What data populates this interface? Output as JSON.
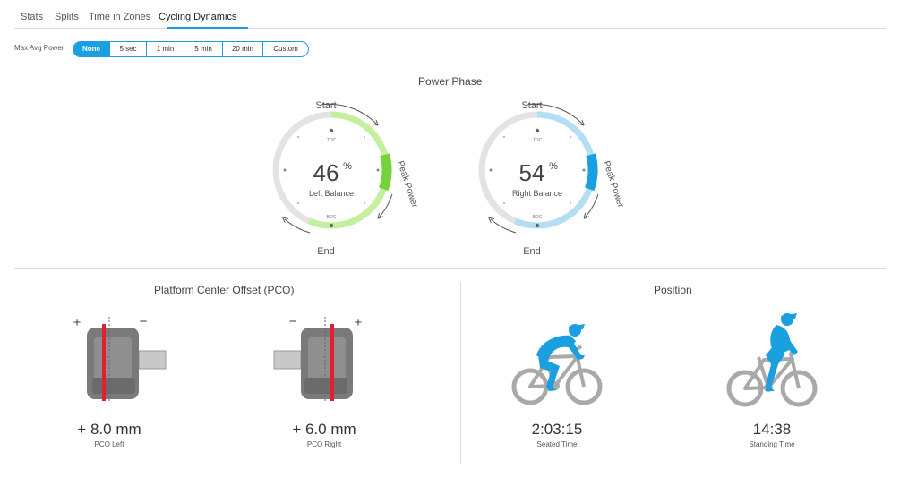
{
  "tabs": [
    "Stats",
    "Splits",
    "Time in Zones",
    "Cycling Dynamics"
  ],
  "active_tab": "Cycling Dynamics",
  "max_avg_power": {
    "label": "Max Avg Power",
    "options": [
      "None",
      "5 sec",
      "1 min",
      "5 min",
      "20 min",
      "Custom"
    ],
    "selected": "None"
  },
  "power_phase": {
    "title": "Power Phase",
    "left": {
      "value": "46",
      "unit": "%",
      "label": "Left Balance",
      "color": "#72d43a",
      "light_color": "#c3ef9e",
      "start_label": "Start",
      "end_label": "End",
      "peak_label": "Peak Power",
      "tdc_label": "TDC",
      "bdc_label": "BDC"
    },
    "right": {
      "value": "54",
      "unit": "%",
      "label": "Right Balance",
      "color": "#1aa0e0",
      "light_color": "#b3def4",
      "start_label": "Start",
      "end_label": "End",
      "peak_label": "Peak Power",
      "tdc_label": "TDC",
      "bdc_label": "BDC"
    }
  },
  "pco": {
    "title": "Platform Center Offset (PCO)",
    "left": {
      "value": "+ 8.0 mm",
      "label": "PCO Left",
      "plus": "+",
      "minus": "−"
    },
    "right": {
      "value": "+ 6.0 mm",
      "label": "PCO Right",
      "plus": "+",
      "minus": "−"
    }
  },
  "position": {
    "title": "Position",
    "seated": {
      "value": "2:03:15",
      "label": "Seated Time"
    },
    "standing": {
      "value": "14:38",
      "label": "Standing Time"
    },
    "rider_color": "#1aa0e0",
    "bike_color": "#a9a9a9"
  }
}
